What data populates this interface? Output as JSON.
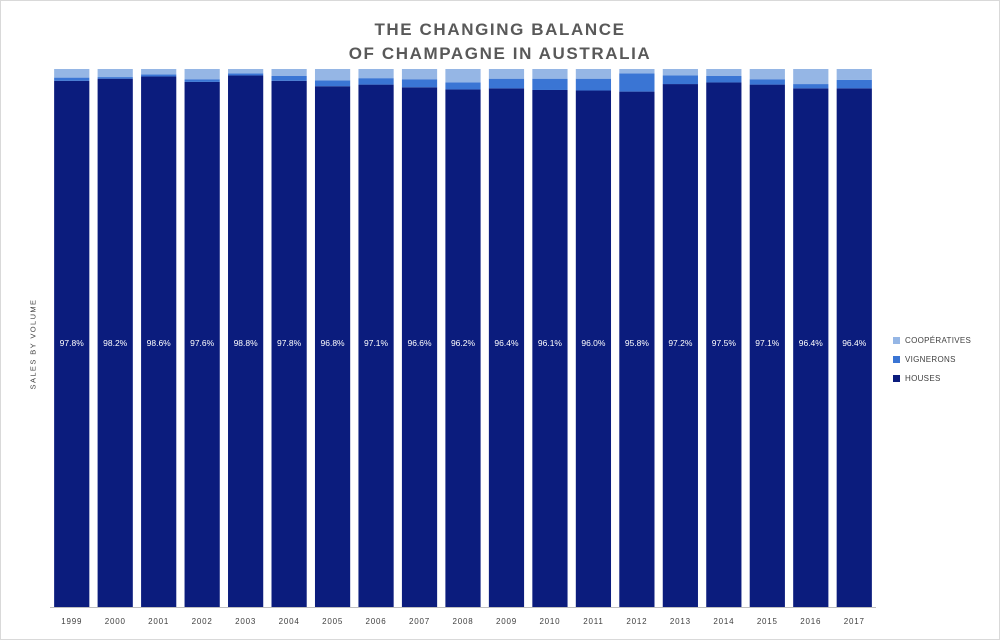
{
  "colors": {
    "houses": "#0b1c7d",
    "vignerons": "#3a75d4",
    "cooperatives": "#95b6e5",
    "axis": "#bfbfbf",
    "tick_text": "#404040",
    "bar_label": "#ffffff"
  },
  "chart_data": {
    "type": "bar",
    "stacked": "percent",
    "title_lines": [
      "THE CHANGING BALANCE",
      "OF CHAMPAGNE IN AUSTRALIA"
    ],
    "xlabel": "",
    "ylabel": "SALES BY VOLUME",
    "ylim": [
      0,
      100
    ],
    "grid": false,
    "legend_position": "right",
    "categories": [
      "1999",
      "2000",
      "2001",
      "2002",
      "2003",
      "2004",
      "2005",
      "2006",
      "2007",
      "2008",
      "2009",
      "2010",
      "2011",
      "2012",
      "2013",
      "2014",
      "2015",
      "2016",
      "2017"
    ],
    "series": [
      {
        "name": "HOUSES",
        "color_key": "houses",
        "values": [
          97.8,
          98.2,
          98.6,
          97.6,
          98.8,
          97.8,
          96.8,
          97.1,
          96.6,
          96.2,
          96.4,
          96.1,
          96.0,
          95.8,
          97.2,
          97.5,
          97.1,
          96.4,
          96.4
        ],
        "labels": [
          "97.8%",
          "98.2%",
          "98.6%",
          "97.6%",
          "98.8%",
          "97.8%",
          "96.8%",
          "97.1%",
          "96.6%",
          "96.2%",
          "96.4%",
          "96.1%",
          "96.0%",
          "95.8%",
          "97.2%",
          "97.5%",
          "97.1%",
          "96.4%",
          "96.4%"
        ]
      },
      {
        "name": "VIGNERONS",
        "color_key": "vignerons",
        "values": [
          0.6,
          0.3,
          0.4,
          0.5,
          0.4,
          0.9,
          1.1,
          1.2,
          1.5,
          1.3,
          1.8,
          2.1,
          2.2,
          3.4,
          1.6,
          1.2,
          1.0,
          0.8,
          1.6
        ]
      },
      {
        "name": "COOPÉRATIVES",
        "color_key": "cooperatives",
        "values": [
          1.6,
          1.5,
          1.0,
          1.9,
          0.8,
          1.3,
          2.1,
          1.7,
          1.9,
          2.5,
          1.8,
          1.8,
          1.8,
          0.8,
          1.2,
          1.3,
          1.9,
          2.8,
          2.0
        ]
      }
    ],
    "legend_order": [
      "COOPÉRATIVES",
      "VIGNERONS",
      "HOUSES"
    ]
  }
}
